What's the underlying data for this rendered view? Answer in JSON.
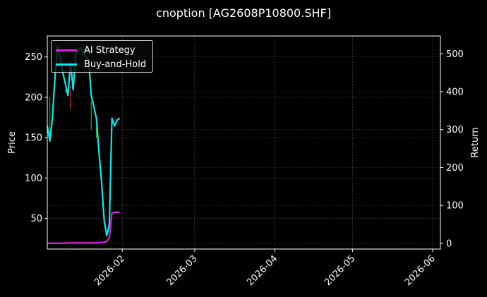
{
  "chart_data": {
    "type": "line",
    "title": "cnoption [AG2608P10800.SHF]",
    "xlabel": "",
    "ylabel": "Price",
    "y2label": "Return",
    "x_ticks": [
      "2026-02",
      "2026-03",
      "2026-04",
      "2026-05",
      "2026-06"
    ],
    "y_ticks": [
      50,
      100,
      150,
      200,
      250
    ],
    "y2_ticks": [
      0,
      100,
      200,
      300,
      400,
      500
    ],
    "xlim": [
      "2026-01-03",
      "2026-06-04"
    ],
    "ylim": [
      12,
      276
    ],
    "y2lim": [
      -15,
      547
    ],
    "grid": true,
    "legend_position": "top-left",
    "colors": {
      "ai": "#dd22dd",
      "bh": "#00eeee",
      "background": "#000000",
      "up": "#22aa22",
      "down": "#dd2222"
    },
    "series": [
      {
        "name": "AI Strategy",
        "axis": "right",
        "x": [
          "2026-01-03",
          "2026-01-06",
          "2026-01-09",
          "2026-01-12",
          "2026-01-15",
          "2026-01-18",
          "2026-01-21",
          "2026-01-23",
          "2026-01-25",
          "2026-01-26",
          "2026-01-27",
          "2026-01-28",
          "2026-01-29",
          "2026-01-30",
          "2026-01-31"
        ],
        "values": [
          0,
          0,
          0,
          1,
          1,
          1,
          1,
          2,
          3,
          5,
          15,
          80,
          82,
          82,
          82
        ]
      },
      {
        "name": "Buy-and-Hold",
        "axis": "right",
        "x": [
          "2026-01-03",
          "2026-01-04",
          "2026-01-05",
          "2026-01-06",
          "2026-01-07",
          "2026-01-08",
          "2026-01-09",
          "2026-01-10",
          "2026-01-11",
          "2026-01-12",
          "2026-01-13",
          "2026-01-14",
          "2026-01-15",
          "2026-01-16",
          "2026-01-17",
          "2026-01-18",
          "2026-01-19",
          "2026-01-20",
          "2026-01-21",
          "2026-01-22",
          "2026-01-23",
          "2026-01-24",
          "2026-01-25",
          "2026-01-26",
          "2026-01-27",
          "2026-01-28",
          "2026-01-29",
          "2026-01-30",
          "2026-01-31"
        ],
        "values": [
          310,
          270,
          330,
          440,
          520,
          490,
          450,
          420,
          390,
          480,
          405,
          500,
          510,
          515,
          500,
          490,
          485,
          390,
          360,
          330,
          240,
          160,
          60,
          20,
          50,
          330,
          310,
          325,
          330
        ]
      }
    ],
    "candles": [
      {
        "x": "2026-01-04",
        "low": 150,
        "high": 200,
        "color": "up"
      },
      {
        "x": "2026-01-10",
        "low": 205,
        "high": 210,
        "color": "down"
      },
      {
        "x": "2026-01-12",
        "low": 185,
        "high": 215,
        "color": "down"
      },
      {
        "x": "2026-01-14",
        "low": 235,
        "high": 255,
        "color": "up"
      },
      {
        "x": "2026-01-20",
        "low": 160,
        "high": 195,
        "color": "up"
      },
      {
        "x": "2026-01-22",
        "low": 150,
        "high": 165,
        "color": "up"
      }
    ]
  }
}
